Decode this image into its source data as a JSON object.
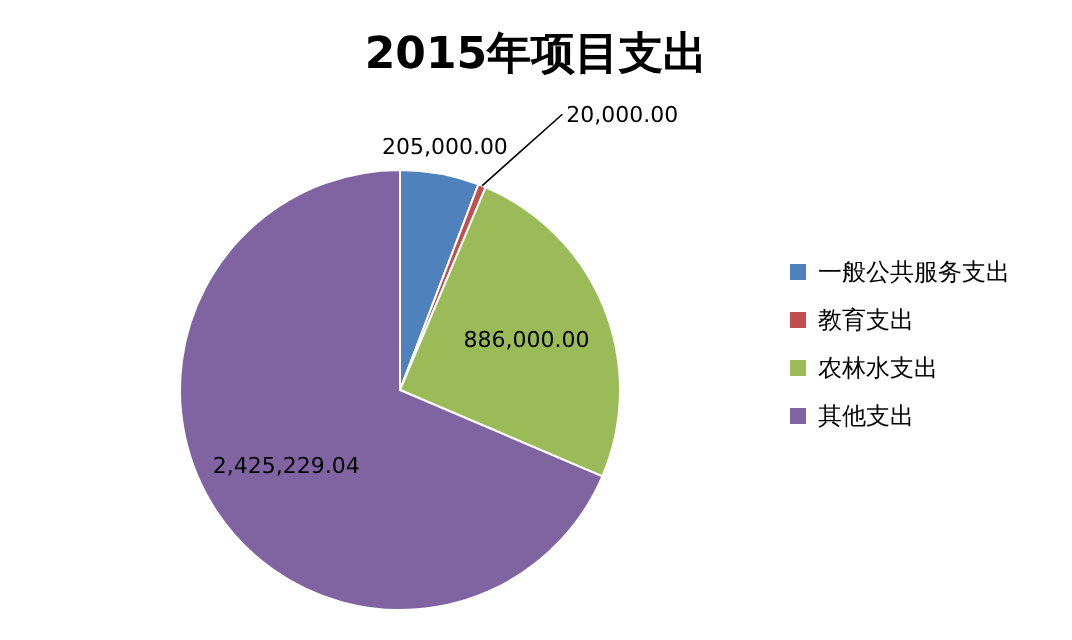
{
  "chart_data": {
    "type": "pie",
    "title": "2015年项目支出",
    "categories": [
      "一般公共服务支出",
      "教育支出",
      "农林水支出",
      "其他支出"
    ],
    "values": [
      205000.0,
      20000.0,
      886000.0,
      2425229.04
    ],
    "colors": [
      "#4f81bd",
      "#c0504d",
      "#9bbb59",
      "#8064a2"
    ],
    "value_labels": [
      "205,000.00",
      "20,000.00",
      "886,000.00",
      "2,425,229.04"
    ],
    "legend": "right"
  }
}
